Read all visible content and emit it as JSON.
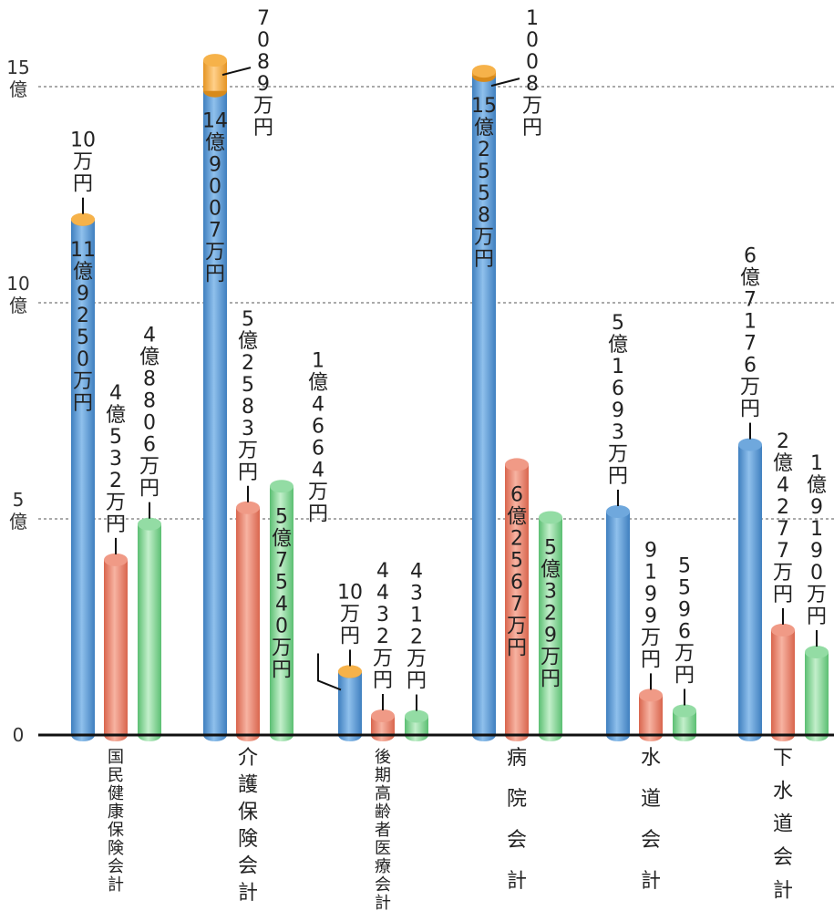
{
  "chart_data": {
    "type": "bar",
    "units": [
      "億",
      "万円"
    ],
    "ylim": [
      0,
      16.5
    ],
    "yticks": [
      {
        "value": 0,
        "text": [
          "0"
        ]
      },
      {
        "value": 5,
        "text": [
          "5",
          "億"
        ]
      },
      {
        "value": 10,
        "text": [
          "10",
          "億"
        ]
      },
      {
        "value": 15,
        "text": [
          "15",
          "億"
        ]
      }
    ],
    "grid": true,
    "categories": [
      "国民健康保険会計",
      "介護保険会計",
      "後期高齢者医療会計",
      "病院会計",
      "水道会計",
      "下水道会計"
    ],
    "category_lines": [
      [
        "国民健康保険会計"
      ],
      [
        "介",
        "護",
        "保",
        "険",
        "会",
        "計"
      ],
      [
        "後期高齢者医療会計"
      ],
      [
        "病",
        "院",
        "会",
        "計"
      ],
      [
        "水",
        "道",
        "会",
        "計"
      ],
      [
        "下",
        "水",
        "道",
        "会",
        "計"
      ]
    ],
    "colors": {
      "blue": "#5b9bd5",
      "orange": "#e8806a",
      "green": "#7fd191",
      "cap": "#f0a030"
    },
    "bars": [
      {
        "category": 0,
        "color": "blue",
        "value": 11.925,
        "cap": 0.001,
        "label": [
          "11",
          "億",
          "9",
          "2",
          "5",
          "0",
          "万",
          "円"
        ],
        "cap_label": [
          "10",
          "万",
          "円"
        ]
      },
      {
        "category": 0,
        "color": "orange",
        "value": 4.0532,
        "label": [
          "4",
          "億",
          "5",
          "3",
          "2",
          "万",
          "円"
        ]
      },
      {
        "category": 0,
        "color": "green",
        "value": 4.8806,
        "label": [
          "4",
          "億",
          "8",
          "8",
          "0",
          "6",
          "万",
          "円"
        ]
      },
      {
        "category": 1,
        "color": "blue",
        "value": 14.9007,
        "cap": 0.7089,
        "label": [
          "14",
          "億",
          "9",
          "0",
          "0",
          "7",
          "万",
          "円"
        ],
        "cap_label": [
          "7",
          "0",
          "8",
          "9",
          "万",
          "円"
        ]
      },
      {
        "category": 1,
        "color": "orange",
        "value": 5.2583,
        "label": [
          "5",
          "億",
          "2",
          "5",
          "8",
          "3",
          "万",
          "円"
        ]
      },
      {
        "category": 1,
        "color": "green",
        "value": 5.754,
        "label": [
          "5",
          "億",
          "7",
          "5",
          "4",
          "0",
          "万",
          "円"
        ]
      },
      {
        "category": 2,
        "color": "blue",
        "value": 1.4664,
        "cap": 0.001,
        "label": [
          "1",
          "億",
          "4",
          "6",
          "6",
          "4",
          "万",
          "円"
        ],
        "cap_label": [
          "10",
          "万",
          "円"
        ]
      },
      {
        "category": 2,
        "color": "orange",
        "value": 0.4432,
        "label": [
          "4",
          "4",
          "3",
          "2",
          "万",
          "円"
        ]
      },
      {
        "category": 2,
        "color": "green",
        "value": 0.4312,
        "label": [
          "4",
          "3",
          "1",
          "2",
          "万",
          "円"
        ]
      },
      {
        "category": 3,
        "color": "blue",
        "value": 15.2558,
        "cap": 0.1008,
        "label": [
          "15",
          "億",
          "2",
          "5",
          "5",
          "8",
          "万",
          "円"
        ],
        "cap_label": [
          "1",
          "0",
          "0",
          "8",
          "万",
          "円"
        ]
      },
      {
        "category": 3,
        "color": "orange",
        "value": 6.2567,
        "label": [
          "6",
          "億",
          "2",
          "5",
          "6",
          "7",
          "万",
          "円"
        ]
      },
      {
        "category": 3,
        "color": "green",
        "value": 5.0329,
        "label": [
          "5",
          "億",
          "3",
          "2",
          "9",
          "万",
          "円"
        ]
      },
      {
        "category": 4,
        "color": "blue",
        "value": 5.1693,
        "label": [
          "5",
          "億",
          "1",
          "6",
          "9",
          "3",
          "万",
          "円"
        ]
      },
      {
        "category": 4,
        "color": "orange",
        "value": 0.9199,
        "label": [
          "9",
          "1",
          "9",
          "9",
          "万",
          "円"
        ]
      },
      {
        "category": 4,
        "color": "green",
        "value": 0.5596,
        "label": [
          "5",
          "5",
          "9",
          "6",
          "万",
          "円"
        ]
      },
      {
        "category": 5,
        "color": "blue",
        "value": 6.7176,
        "label": [
          "6",
          "億",
          "7",
          "1",
          "7",
          "6",
          "万",
          "円"
        ]
      },
      {
        "category": 5,
        "color": "orange",
        "value": 2.4277,
        "label": [
          "2",
          "億",
          "4",
          "2",
          "7",
          "7",
          "万",
          "円"
        ]
      },
      {
        "category": 5,
        "color": "green",
        "value": 1.919,
        "label": [
          "1",
          "億",
          "9",
          "1",
          "9",
          "0",
          "万",
          "円"
        ]
      }
    ]
  }
}
